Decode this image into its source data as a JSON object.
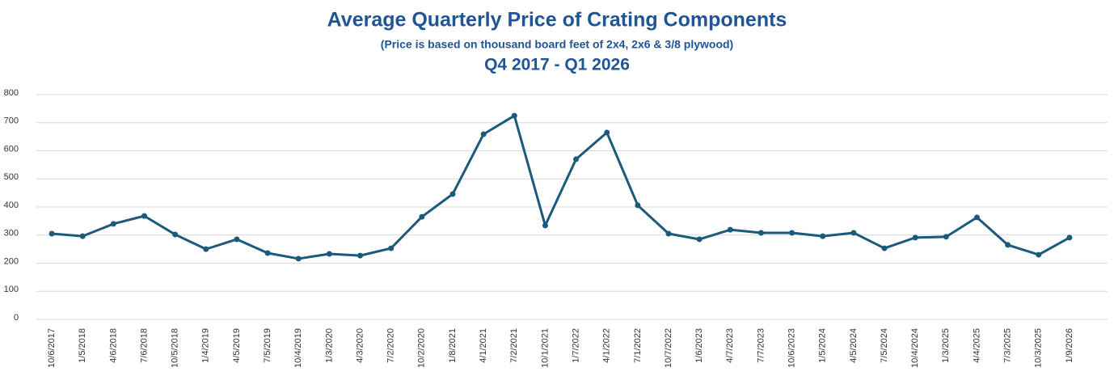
{
  "chart_data": {
    "type": "line",
    "title": "Average Quarterly Price of Crating Components",
    "subtitle": "(Price is based on thousand board feet of 2x4, 2x6 & 3/8 plywood)",
    "period": "Q4 2017 - Q1 2026",
    "categories": [
      "10/6/2017",
      "1/5/2018",
      "4/6/2018",
      "7/6/2018",
      "10/5/2018",
      "1/4/2019",
      "4/5/2019",
      "7/5/2019",
      "10/4/2019",
      "1/3/2020",
      "4/3/2020",
      "7/2/2020",
      "10/2/2020",
      "1/8/2021",
      "4/1/2021",
      "7/2/2021",
      "10/1/2021",
      "1/7/2022",
      "4/1/2022",
      "7/1/2022",
      "10/7/2022",
      "1/6/2023",
      "4/7/2023",
      "7/7/2023",
      "10/6/2023",
      "1/5/2024",
      "4/5/2024",
      "7/5/2024",
      "10/4/2024",
      "1/3/2025",
      "4/4/2025",
      "7/3/2025",
      "10/3/2025",
      "1/9/2026"
    ],
    "values": [
      305,
      296,
      340,
      368,
      302,
      250,
      285,
      236,
      216,
      233,
      227,
      253,
      365,
      446,
      659,
      725,
      334,
      570,
      665,
      406,
      305,
      285,
      319,
      308,
      308,
      296,
      308,
      253,
      291,
      294,
      363,
      265,
      230,
      291
    ],
    "color": "#1b5a7a",
    "ylim": [
      0,
      800
    ],
    "yticks": [
      0,
      100,
      200,
      300,
      400,
      500,
      600,
      700,
      800
    ],
    "grid": true
  }
}
